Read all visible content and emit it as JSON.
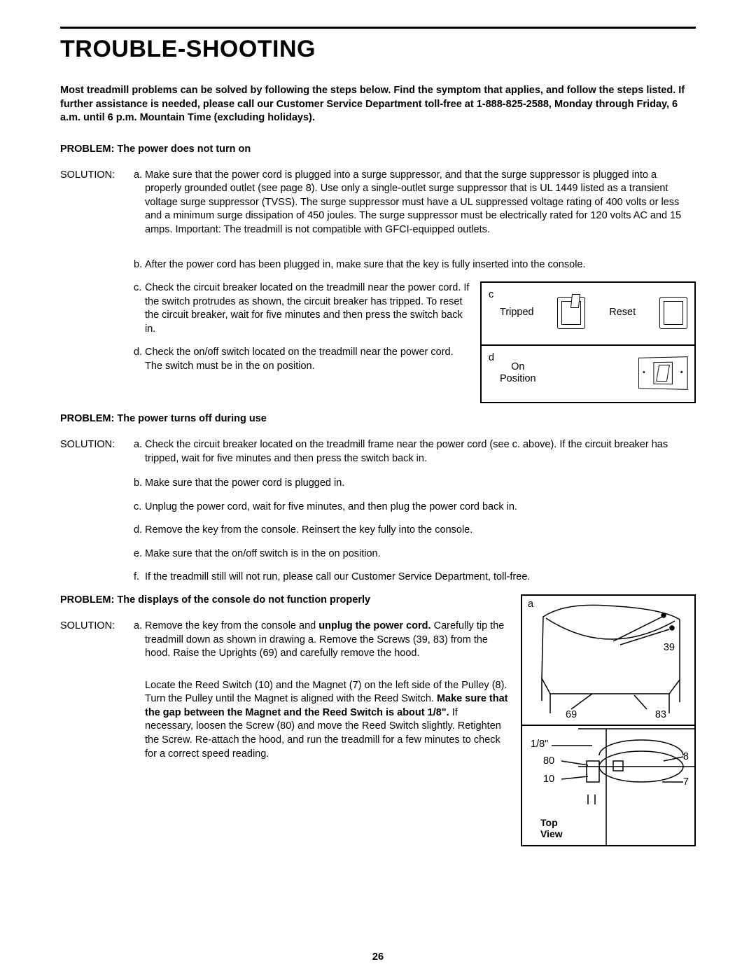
{
  "page_number": "26",
  "title": "TROUBLE-SHOOTING",
  "intro": "Most treadmill problems can be solved by following the steps below. Find the symptom that applies, and follow the steps listed. If further assistance is needed, please call our Customer Service Department toll-free at 1-888-825-2588, Monday through Friday, 6 a.m. until 6 p.m. Mountain Time (excluding holidays).",
  "problems": {
    "p1": {
      "heading": "PROBLEM:  The power does not turn on",
      "solution_label": "SOLUTION:",
      "a": "Make sure that the power cord is plugged into a surge suppressor, and that the surge suppressor is plugged into a properly grounded outlet (see page 8). Use only a single-outlet surge suppressor that is UL 1449 listed as a transient voltage surge suppressor (TVSS). The surge suppressor must have a UL suppressed voltage rating of 400 volts or less and a minimum surge dissipation of 450 joules. The surge suppressor must be electrically rated for 120 volts AC and 15 amps. Important: The treadmill is not compatible with GFCI-equipped outlets.",
      "b": "After the power cord has been plugged in, make sure that the key is fully inserted into the console.",
      "c": "Check the circuit breaker located on the treadmill near the power cord. If the switch protrudes as shown, the circuit breaker has tripped. To reset the circuit breaker, wait for five minutes and then press the switch back in.",
      "d": "Check the on/off switch located on the treadmill near the power cord. The switch must be in the on position.",
      "fig": {
        "c_letter": "c",
        "tripped": "Tripped",
        "reset": "Reset",
        "d_letter": "d",
        "on_position": "On Position"
      }
    },
    "p2": {
      "heading": "PROBLEM:  The power turns off during use",
      "solution_label": "SOLUTION:",
      "a": "Check the circuit breaker located on the treadmill frame near the power cord (see c. above). If the circuit breaker has tripped, wait for five minutes and then press the switch back in.",
      "b": "Make sure that the power cord is plugged in.",
      "c": "Unplug the power cord, wait for five minutes, and then plug the power cord back in.",
      "d": "Remove the key from the console. Reinsert the key fully into the console.",
      "e": "Make sure that the on/off switch is in the on position.",
      "f": "If the treadmill still will not run, please call our Customer Service Department, toll-free."
    },
    "p3": {
      "heading": "PROBLEM:  The displays of the console do not function properly",
      "solution_label": "SOLUTION:",
      "a_pre": "Remove the key from the console and ",
      "a_bold1": "unplug the power cord.",
      "a_mid": " Carefully tip the treadmill down as shown in drawing a. Remove the Screws (39, 83) from the hood. Raise the Uprights (69) and carefully remove the hood.",
      "a2_pre": "Locate the Reed Switch (10) and the Magnet (7) on the left side of the Pulley (8). Turn the Pulley until the Magnet is aligned with the Reed Switch. ",
      "a2_bold": "Make sure that the gap between the Magnet and the Reed Switch is about 1/8\".",
      "a2_post": " If necessary, loosen the Screw (80) and move the Reed Switch slightly. Retighten the Screw. Re-attach the hood, and run the treadmill for a few minutes to check for a correct speed reading.",
      "fig": {
        "a_letter": "a",
        "l39": "39",
        "l69": "69",
        "l83": "83",
        "gap": "1/8\"",
        "l80": "80",
        "l8": "8",
        "l10": "10",
        "l7": "7",
        "topview": "Top View"
      }
    }
  }
}
